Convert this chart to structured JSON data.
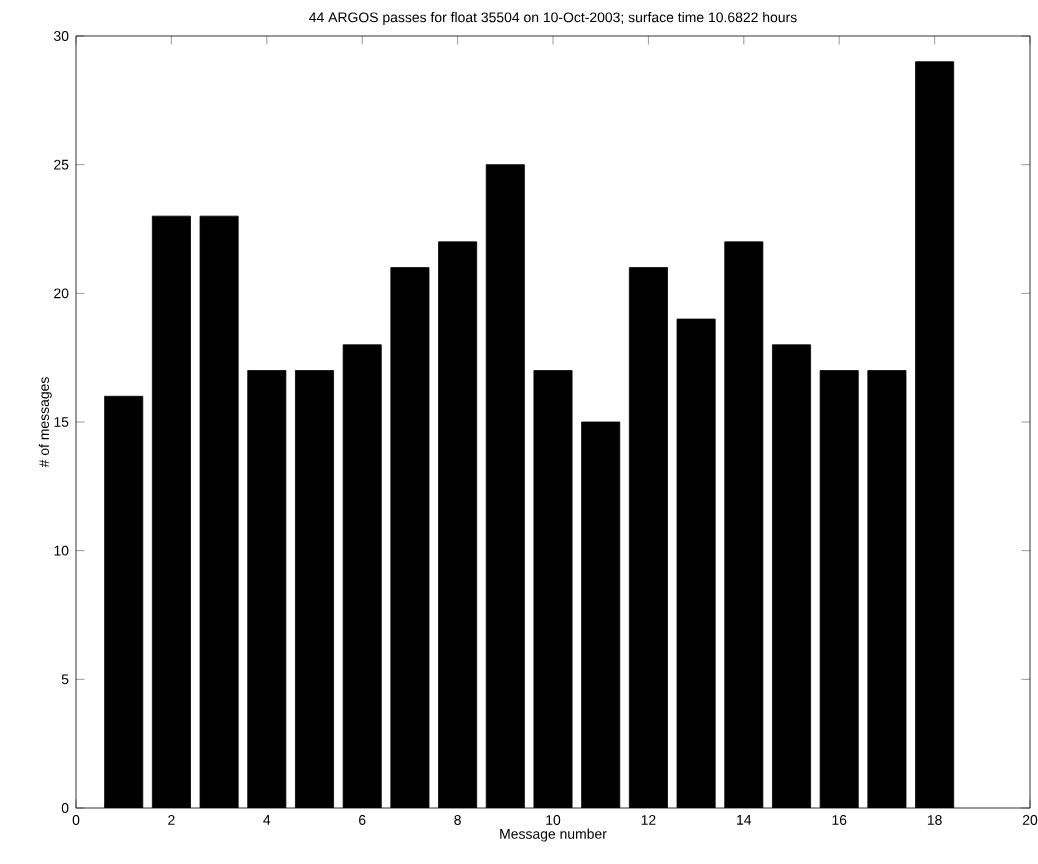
{
  "chart_data": {
    "type": "bar",
    "title": "44 ARGOS passes for float 35504 on 10-Oct-2003; surface time 10.6822 hours",
    "xlabel": "Message number",
    "ylabel": "# of messages",
    "x": [
      1,
      2,
      3,
      4,
      5,
      6,
      7,
      8,
      9,
      10,
      11,
      12,
      13,
      14,
      15,
      16,
      17,
      18
    ],
    "values": [
      16,
      23,
      23,
      17,
      17,
      18,
      21,
      22,
      25,
      17,
      15,
      21,
      19,
      22,
      18,
      17,
      17,
      29
    ],
    "color": "#000000",
    "xlim": [
      0,
      20
    ],
    "xticks": [
      0,
      2,
      4,
      6,
      8,
      10,
      12,
      14,
      16,
      18,
      20
    ],
    "ylim": [
      0,
      30
    ],
    "yticks": [
      0,
      5,
      10,
      15,
      20,
      25,
      30
    ]
  }
}
